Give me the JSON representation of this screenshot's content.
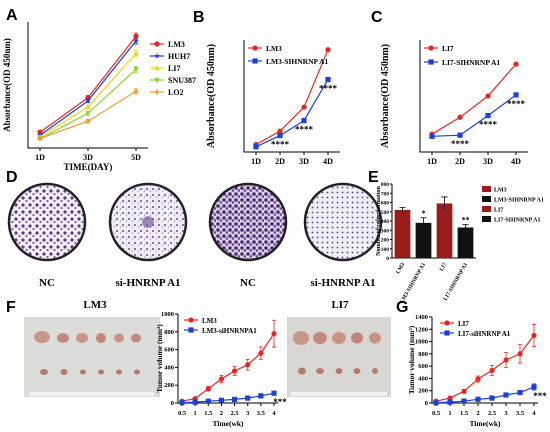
{
  "panel_labels": {
    "A": "A",
    "B": "B",
    "C": "C",
    "D": "D",
    "E": "E",
    "F": "F",
    "G": "G"
  },
  "panel_d": {
    "captions": [
      "NC",
      "si-HNRNP A1",
      "NC",
      "si-HNRNP A1"
    ]
  },
  "panel_f": {
    "title_lm3": "LM3",
    "title_li7": "LI7"
  },
  "colors": {
    "red": "#e8251f",
    "blue": "#1e3fd8",
    "yellow": "#f2d41a",
    "green": "#86d62b",
    "orange": "#f39a34",
    "darkred": "#9b1c1c",
    "black": "#111111"
  },
  "chart_data": [
    {
      "id": "A",
      "type": "line",
      "xlabel": "TIME(DAY)",
      "ylabel": "Absorbance(OD 450nm)",
      "categories": [
        "1D",
        "3D",
        "5D"
      ],
      "ylim": [
        0,
        4
      ],
      "series": [
        {
          "name": "LM3",
          "color": "#e8251f",
          "marker": "circle",
          "values": [
            0.5,
            1.6,
            3.55
          ],
          "err": [
            0.05,
            0.06,
            0.1
          ]
        },
        {
          "name": "HUH7",
          "color": "#1e3fd8",
          "marker": "star",
          "values": [
            0.4,
            1.5,
            3.4
          ],
          "err": [
            0.04,
            0.06,
            0.1
          ]
        },
        {
          "name": "LI7",
          "color": "#f2d41a",
          "marker": "triangle-up",
          "values": [
            0.35,
            1.3,
            3.0
          ],
          "err": [
            0.04,
            0.05,
            0.1
          ]
        },
        {
          "name": "SNU387",
          "color": "#86d62b",
          "marker": "triangle-down",
          "values": [
            0.3,
            1.1,
            2.5
          ],
          "err": [
            0.04,
            0.05,
            0.1
          ]
        },
        {
          "name": "LO2",
          "color": "#f39a34",
          "marker": "plus",
          "values": [
            0.3,
            0.85,
            1.8
          ],
          "err": [
            0.03,
            0.05,
            0.08
          ]
        }
      ]
    },
    {
      "id": "B",
      "type": "line",
      "xlabel": "",
      "ylabel": "Absorbance(OD 450nm)",
      "categories": [
        "1D",
        "2D",
        "3D",
        "4D"
      ],
      "ylim": [
        0,
        1.5
      ],
      "series": [
        {
          "name": "LM3",
          "color": "#e8251f",
          "marker": "circle",
          "values": [
            0.1,
            0.28,
            0.6,
            1.37
          ]
        },
        {
          "name": "LM3-SIHNRNP A1",
          "color": "#1e3fd8",
          "marker": "square",
          "values": [
            0.07,
            0.22,
            0.42,
            0.97
          ]
        }
      ],
      "annotations": [
        "****",
        "****",
        "****"
      ]
    },
    {
      "id": "C",
      "type": "line",
      "xlabel": "",
      "ylabel": "Absorbance(OD 450nm)",
      "categories": [
        "1D",
        "2D",
        "3D",
        "4D"
      ],
      "ylim": [
        0,
        2
      ],
      "series": [
        {
          "name": "LI7",
          "color": "#e8251f",
          "marker": "circle",
          "values": [
            0.32,
            0.62,
            1.0,
            1.57
          ]
        },
        {
          "name": "LI7-SIHNRNP A1",
          "color": "#1e3fd8",
          "marker": "square",
          "values": [
            0.28,
            0.3,
            0.65,
            1.02
          ]
        }
      ],
      "annotations": [
        "****",
        "****",
        "****"
      ]
    },
    {
      "id": "E",
      "type": "bar",
      "ylabel": "Number of colne formation",
      "categories": [
        "LM3",
        "LM3-SIHNRNP A1",
        "LI7",
        "LI7-SIHNRNP A1"
      ],
      "ylim": [
        0,
        800
      ],
      "yticks": [
        0,
        100,
        200,
        300,
        400,
        500,
        600,
        700,
        800
      ],
      "values": [
        520,
        380,
        590,
        330
      ],
      "err": [
        25,
        55,
        70,
        30
      ],
      "colors": [
        "#9b1c1c",
        "#111111",
        "#9b1c1c",
        "#111111"
      ],
      "legend": [
        "LM3",
        "LM3-SIHNRNP A1",
        "LI7",
        "LI7-SIHNRNP A1"
      ],
      "annotations": [
        "*",
        "**"
      ]
    },
    {
      "id": "F",
      "type": "line",
      "xlabel": "Time(wk)",
      "ylabel": "Tumor volume (mm³)",
      "x": [
        0.5,
        1,
        1.5,
        2,
        2.5,
        3,
        3.5,
        4
      ],
      "xticks": [
        "0.5",
        "1",
        "1.5",
        "2",
        "2.5",
        "3",
        "3.5",
        "4"
      ],
      "ylim": [
        0,
        1000
      ],
      "yticks": [
        "0",
        "200",
        "400",
        "600",
        "800",
        "1000"
      ],
      "series": [
        {
          "name": "LM3",
          "color": "#e8251f",
          "marker": "circle",
          "values": [
            20,
            50,
            160,
            270,
            360,
            430,
            560,
            780
          ],
          "err": [
            5,
            10,
            25,
            40,
            50,
            60,
            70,
            150
          ]
        },
        {
          "name": "LM3-siHNRNPA1",
          "color": "#1e3fd8",
          "marker": "square",
          "values": [
            5,
            10,
            20,
            30,
            40,
            55,
            80,
            110
          ],
          "err": [
            2,
            3,
            5,
            6,
            8,
            10,
            12,
            20
          ]
        }
      ],
      "annotations": [
        "***"
      ]
    },
    {
      "id": "G",
      "type": "line",
      "xlabel": "Time(wk)",
      "ylabel": "Tumor volume (mm³)",
      "x": [
        0.5,
        1,
        1.5,
        2,
        2.5,
        3,
        3.5,
        4
      ],
      "xticks": [
        "0.5",
        "1",
        "1.5",
        "2",
        "2.5",
        "3",
        "3.5",
        "4"
      ],
      "ylim": [
        0,
        1400
      ],
      "yticks": [
        "0",
        "200",
        "400",
        "600",
        "800",
        "1000",
        "1200",
        "1400"
      ],
      "series": [
        {
          "name": "LI7",
          "color": "#e8251f",
          "marker": "circle",
          "values": [
            30,
            80,
            190,
            390,
            530,
            700,
            800,
            1100
          ],
          "err": [
            5,
            15,
            30,
            50,
            80,
            120,
            150,
            180
          ]
        },
        {
          "name": "LI7-siHNRNP A1",
          "color": "#1e3fd8",
          "marker": "square",
          "values": [
            5,
            15,
            30,
            60,
            80,
            130,
            170,
            260
          ],
          "err": [
            2,
            3,
            5,
            10,
            15,
            20,
            30,
            50
          ]
        }
      ],
      "annotations": [
        "***"
      ]
    }
  ]
}
